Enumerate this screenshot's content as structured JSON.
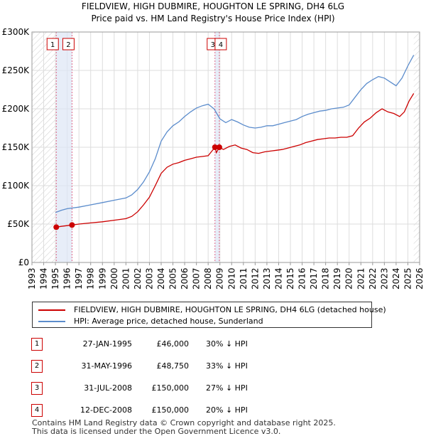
{
  "chart_data": {
    "type": "line",
    "title": "FIELDVIEW, HIGH DUBMIRE, HOUGHTON LE SPRING, DH4 6LG",
    "subtitle": "Price paid vs. HM Land Registry's House Price Index (HPI)",
    "xlabel": "",
    "ylabel": "",
    "xlim": [
      1993,
      2026
    ],
    "ylim": [
      0,
      300000
    ],
    "x_ticks": [
      "1993",
      "1994",
      "1995",
      "1996",
      "1997",
      "1998",
      "1999",
      "2000",
      "2001",
      "2002",
      "2003",
      "2004",
      "2005",
      "2006",
      "2007",
      "2008",
      "2009",
      "2010",
      "2011",
      "2012",
      "2013",
      "2014",
      "2015",
      "2016",
      "2017",
      "2018",
      "2019",
      "2020",
      "2021",
      "2022",
      "2023",
      "2024",
      "2025",
      "2026"
    ],
    "y_ticks": [
      {
        "value": 0,
        "label": "£0"
      },
      {
        "value": 50000,
        "label": "£50K"
      },
      {
        "value": 100000,
        "label": "£100K"
      },
      {
        "value": 150000,
        "label": "£150K"
      },
      {
        "value": 200000,
        "label": "£200K"
      },
      {
        "value": 250000,
        "label": "£250K"
      },
      {
        "value": 300000,
        "label": "£300K"
      }
    ],
    "series": [
      {
        "name": "FIELDVIEW, HIGH DUBMIRE, HOUGHTON LE SPRING, DH4 6LG (detached house)",
        "color": "#cc0000",
        "points": [
          [
            1995.07,
            46000
          ],
          [
            1995.5,
            47000
          ],
          [
            1996.0,
            48000
          ],
          [
            1996.41,
            48750
          ],
          [
            1997,
            50000
          ],
          [
            1998,
            51500
          ],
          [
            1999,
            53000
          ],
          [
            2000,
            55000
          ],
          [
            2001,
            57000
          ],
          [
            2001.5,
            60000
          ],
          [
            2002,
            66000
          ],
          [
            2002.5,
            75000
          ],
          [
            2003,
            85000
          ],
          [
            2003.5,
            100000
          ],
          [
            2004,
            116000
          ],
          [
            2004.5,
            124000
          ],
          [
            2005,
            128000
          ],
          [
            2005.5,
            130000
          ],
          [
            2006,
            133000
          ],
          [
            2006.5,
            135000
          ],
          [
            2007,
            137000
          ],
          [
            2007.5,
            138000
          ],
          [
            2008,
            139000
          ],
          [
            2008.58,
            150000
          ],
          [
            2008.7,
            143000
          ],
          [
            2008.95,
            150000
          ],
          [
            2009.3,
            147000
          ],
          [
            2009.8,
            151000
          ],
          [
            2010.3,
            153000
          ],
          [
            2010.8,
            149000
          ],
          [
            2011.3,
            147000
          ],
          [
            2011.8,
            143000
          ],
          [
            2012.3,
            142000
          ],
          [
            2012.8,
            144000
          ],
          [
            2013.3,
            145000
          ],
          [
            2013.8,
            146000
          ],
          [
            2014.3,
            147000
          ],
          [
            2014.8,
            149000
          ],
          [
            2015.3,
            151000
          ],
          [
            2015.8,
            153000
          ],
          [
            2016.3,
            156000
          ],
          [
            2016.8,
            158000
          ],
          [
            2017.3,
            160000
          ],
          [
            2017.8,
            161000
          ],
          [
            2018.3,
            162000
          ],
          [
            2018.8,
            162000
          ],
          [
            2019.3,
            163000
          ],
          [
            2019.8,
            163000
          ],
          [
            2020.3,
            165000
          ],
          [
            2020.8,
            175000
          ],
          [
            2021.3,
            183000
          ],
          [
            2021.8,
            188000
          ],
          [
            2022.3,
            195000
          ],
          [
            2022.8,
            200000
          ],
          [
            2023.3,
            196000
          ],
          [
            2023.8,
            194000
          ],
          [
            2024.3,
            190000
          ],
          [
            2024.7,
            196000
          ],
          [
            2025.1,
            210000
          ],
          [
            2025.5,
            220000
          ]
        ]
      },
      {
        "name": "HPI: Average price, detached house, Sunderland",
        "color": "#5b8ccc",
        "points": [
          [
            1995.0,
            65000
          ],
          [
            1995.5,
            68000
          ],
          [
            1996,
            70000
          ],
          [
            1997,
            72000
          ],
          [
            1998,
            75000
          ],
          [
            1999,
            78000
          ],
          [
            2000,
            81000
          ],
          [
            2001,
            84000
          ],
          [
            2001.5,
            88000
          ],
          [
            2002,
            95000
          ],
          [
            2002.5,
            105000
          ],
          [
            2003,
            118000
          ],
          [
            2003.5,
            135000
          ],
          [
            2004,
            158000
          ],
          [
            2004.5,
            170000
          ],
          [
            2005,
            178000
          ],
          [
            2005.5,
            183000
          ],
          [
            2006,
            190000
          ],
          [
            2006.5,
            196000
          ],
          [
            2007,
            201000
          ],
          [
            2007.5,
            204000
          ],
          [
            2008,
            206000
          ],
          [
            2008.5,
            200000
          ],
          [
            2009,
            187000
          ],
          [
            2009.5,
            182000
          ],
          [
            2010,
            186000
          ],
          [
            2010.5,
            183000
          ],
          [
            2011,
            179000
          ],
          [
            2011.5,
            176000
          ],
          [
            2012,
            175000
          ],
          [
            2012.5,
            176000
          ],
          [
            2013,
            178000
          ],
          [
            2013.5,
            178000
          ],
          [
            2014,
            180000
          ],
          [
            2014.5,
            182000
          ],
          [
            2015,
            184000
          ],
          [
            2015.5,
            186000
          ],
          [
            2016,
            190000
          ],
          [
            2016.5,
            193000
          ],
          [
            2017,
            195000
          ],
          [
            2017.5,
            197000
          ],
          [
            2018,
            198000
          ],
          [
            2018.5,
            200000
          ],
          [
            2019,
            201000
          ],
          [
            2019.5,
            202000
          ],
          [
            2020,
            205000
          ],
          [
            2020.5,
            215000
          ],
          [
            2021,
            225000
          ],
          [
            2021.5,
            233000
          ],
          [
            2022,
            238000
          ],
          [
            2022.5,
            242000
          ],
          [
            2023,
            240000
          ],
          [
            2023.5,
            235000
          ],
          [
            2024,
            230000
          ],
          [
            2024.5,
            240000
          ],
          [
            2025,
            256000
          ],
          [
            2025.5,
            270000
          ]
        ]
      }
    ],
    "sales": [
      {
        "id": "1",
        "x": 1995.07,
        "price": 46000
      },
      {
        "id": "2",
        "x": 1996.41,
        "price": 48750
      },
      {
        "id": "3",
        "x": 2008.58,
        "price": 150000
      },
      {
        "id": "4",
        "x": 2008.95,
        "price": 150000
      }
    ],
    "legend": [
      {
        "label": "FIELDVIEW, HIGH DUBMIRE, HOUGHTON LE SPRING, DH4 6LG (detached house)",
        "color": "#cc0000"
      },
      {
        "label": "HPI: Average price, detached house, Sunderland",
        "color": "#5b8ccc"
      }
    ]
  },
  "sales_table": [
    {
      "num": "1",
      "date": "27-JAN-1995",
      "price": "£46,000",
      "hpi": "30% ↓ HPI"
    },
    {
      "num": "2",
      "date": "31-MAY-1996",
      "price": "£48,750",
      "hpi": "33% ↓ HPI"
    },
    {
      "num": "3",
      "date": "31-JUL-2008",
      "price": "£150,000",
      "hpi": "27% ↓ HPI"
    },
    {
      "num": "4",
      "date": "12-DEC-2008",
      "price": "£150,000",
      "hpi": "20% ↓ HPI"
    }
  ],
  "footer": {
    "line1": "Contains HM Land Registry data © Crown copyright and database right 2025.",
    "line2": "This data is licensed under the Open Government Licence v3.0."
  }
}
